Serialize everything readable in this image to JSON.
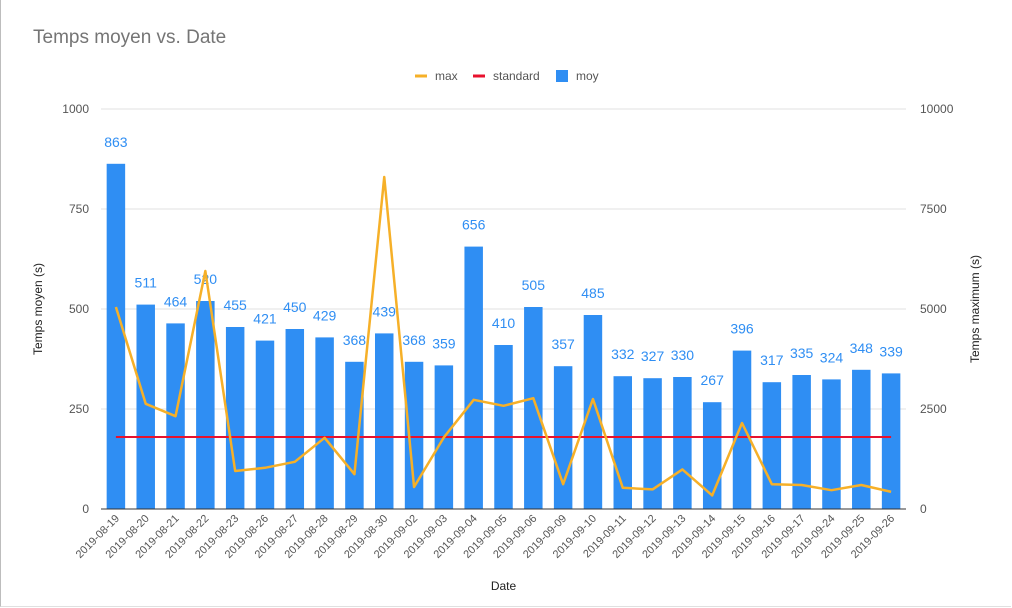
{
  "chart_data": {
    "type": "bar",
    "title": "Temps moyen vs. Date",
    "xlabel": "Date",
    "ylabel": "Temps moyen (s)",
    "y2label": "Temps maximum (s)",
    "ylim": [
      0,
      1000
    ],
    "y2lim": [
      0,
      10000
    ],
    "yticks": [
      0,
      250,
      500,
      750,
      1000
    ],
    "y2ticks": [
      0,
      2500,
      5000,
      7500,
      10000
    ],
    "legend_position": "top-center",
    "categories": [
      "2019-08-19",
      "2019-08-20",
      "2019-08-21",
      "2019-08-22",
      "2019-08-23",
      "2019-08-26",
      "2019-08-27",
      "2019-08-28",
      "2019-08-29",
      "2019-08-30",
      "2019-09-02",
      "2019-09-03",
      "2019-09-04",
      "2019-09-05",
      "2019-09-06",
      "2019-09-09",
      "2019-09-10",
      "2019-09-11",
      "2019-09-12",
      "2019-09-13",
      "2019-09-14",
      "2019-09-15",
      "2019-09-16",
      "2019-09-17",
      "2019-09-24",
      "2019-09-25",
      "2019-09-26"
    ],
    "series": [
      {
        "name": "max",
        "type": "line",
        "axis": "right",
        "color": "#f6b028",
        "values": [
          5050,
          2630,
          2320,
          5950,
          950,
          1030,
          1180,
          1780,
          870,
          8300,
          550,
          1790,
          2730,
          2580,
          2770,
          620,
          2750,
          530,
          490,
          990,
          340,
          2150,
          620,
          600,
          470,
          600,
          430
        ]
      },
      {
        "name": "standard",
        "type": "line",
        "axis": "left",
        "color": "#e8112d",
        "values": [
          180,
          180,
          180,
          180,
          180,
          180,
          180,
          180,
          180,
          180,
          180,
          180,
          180,
          180,
          180,
          180,
          180,
          180,
          180,
          180,
          180,
          180,
          180,
          180,
          180,
          180,
          180
        ]
      },
      {
        "name": "moy",
        "type": "bar",
        "axis": "left",
        "color": "#2f8ef3",
        "values": [
          863,
          511,
          464,
          520,
          455,
          421,
          450,
          429,
          368,
          439,
          368,
          359,
          656,
          410,
          505,
          357,
          485,
          332,
          327,
          330,
          267,
          396,
          317,
          335,
          324,
          348,
          339
        ]
      }
    ],
    "legend": [
      {
        "name": "max",
        "color": "#f6b028",
        "marker": "line"
      },
      {
        "name": "standard",
        "color": "#e8112d",
        "marker": "line"
      },
      {
        "name": "moy",
        "color": "#2f8ef3",
        "marker": "square"
      }
    ],
    "colors": {
      "grid": "#e0e0e0",
      "baseline": "#333333",
      "text": "#555555",
      "label": "#2f8ef3"
    }
  }
}
